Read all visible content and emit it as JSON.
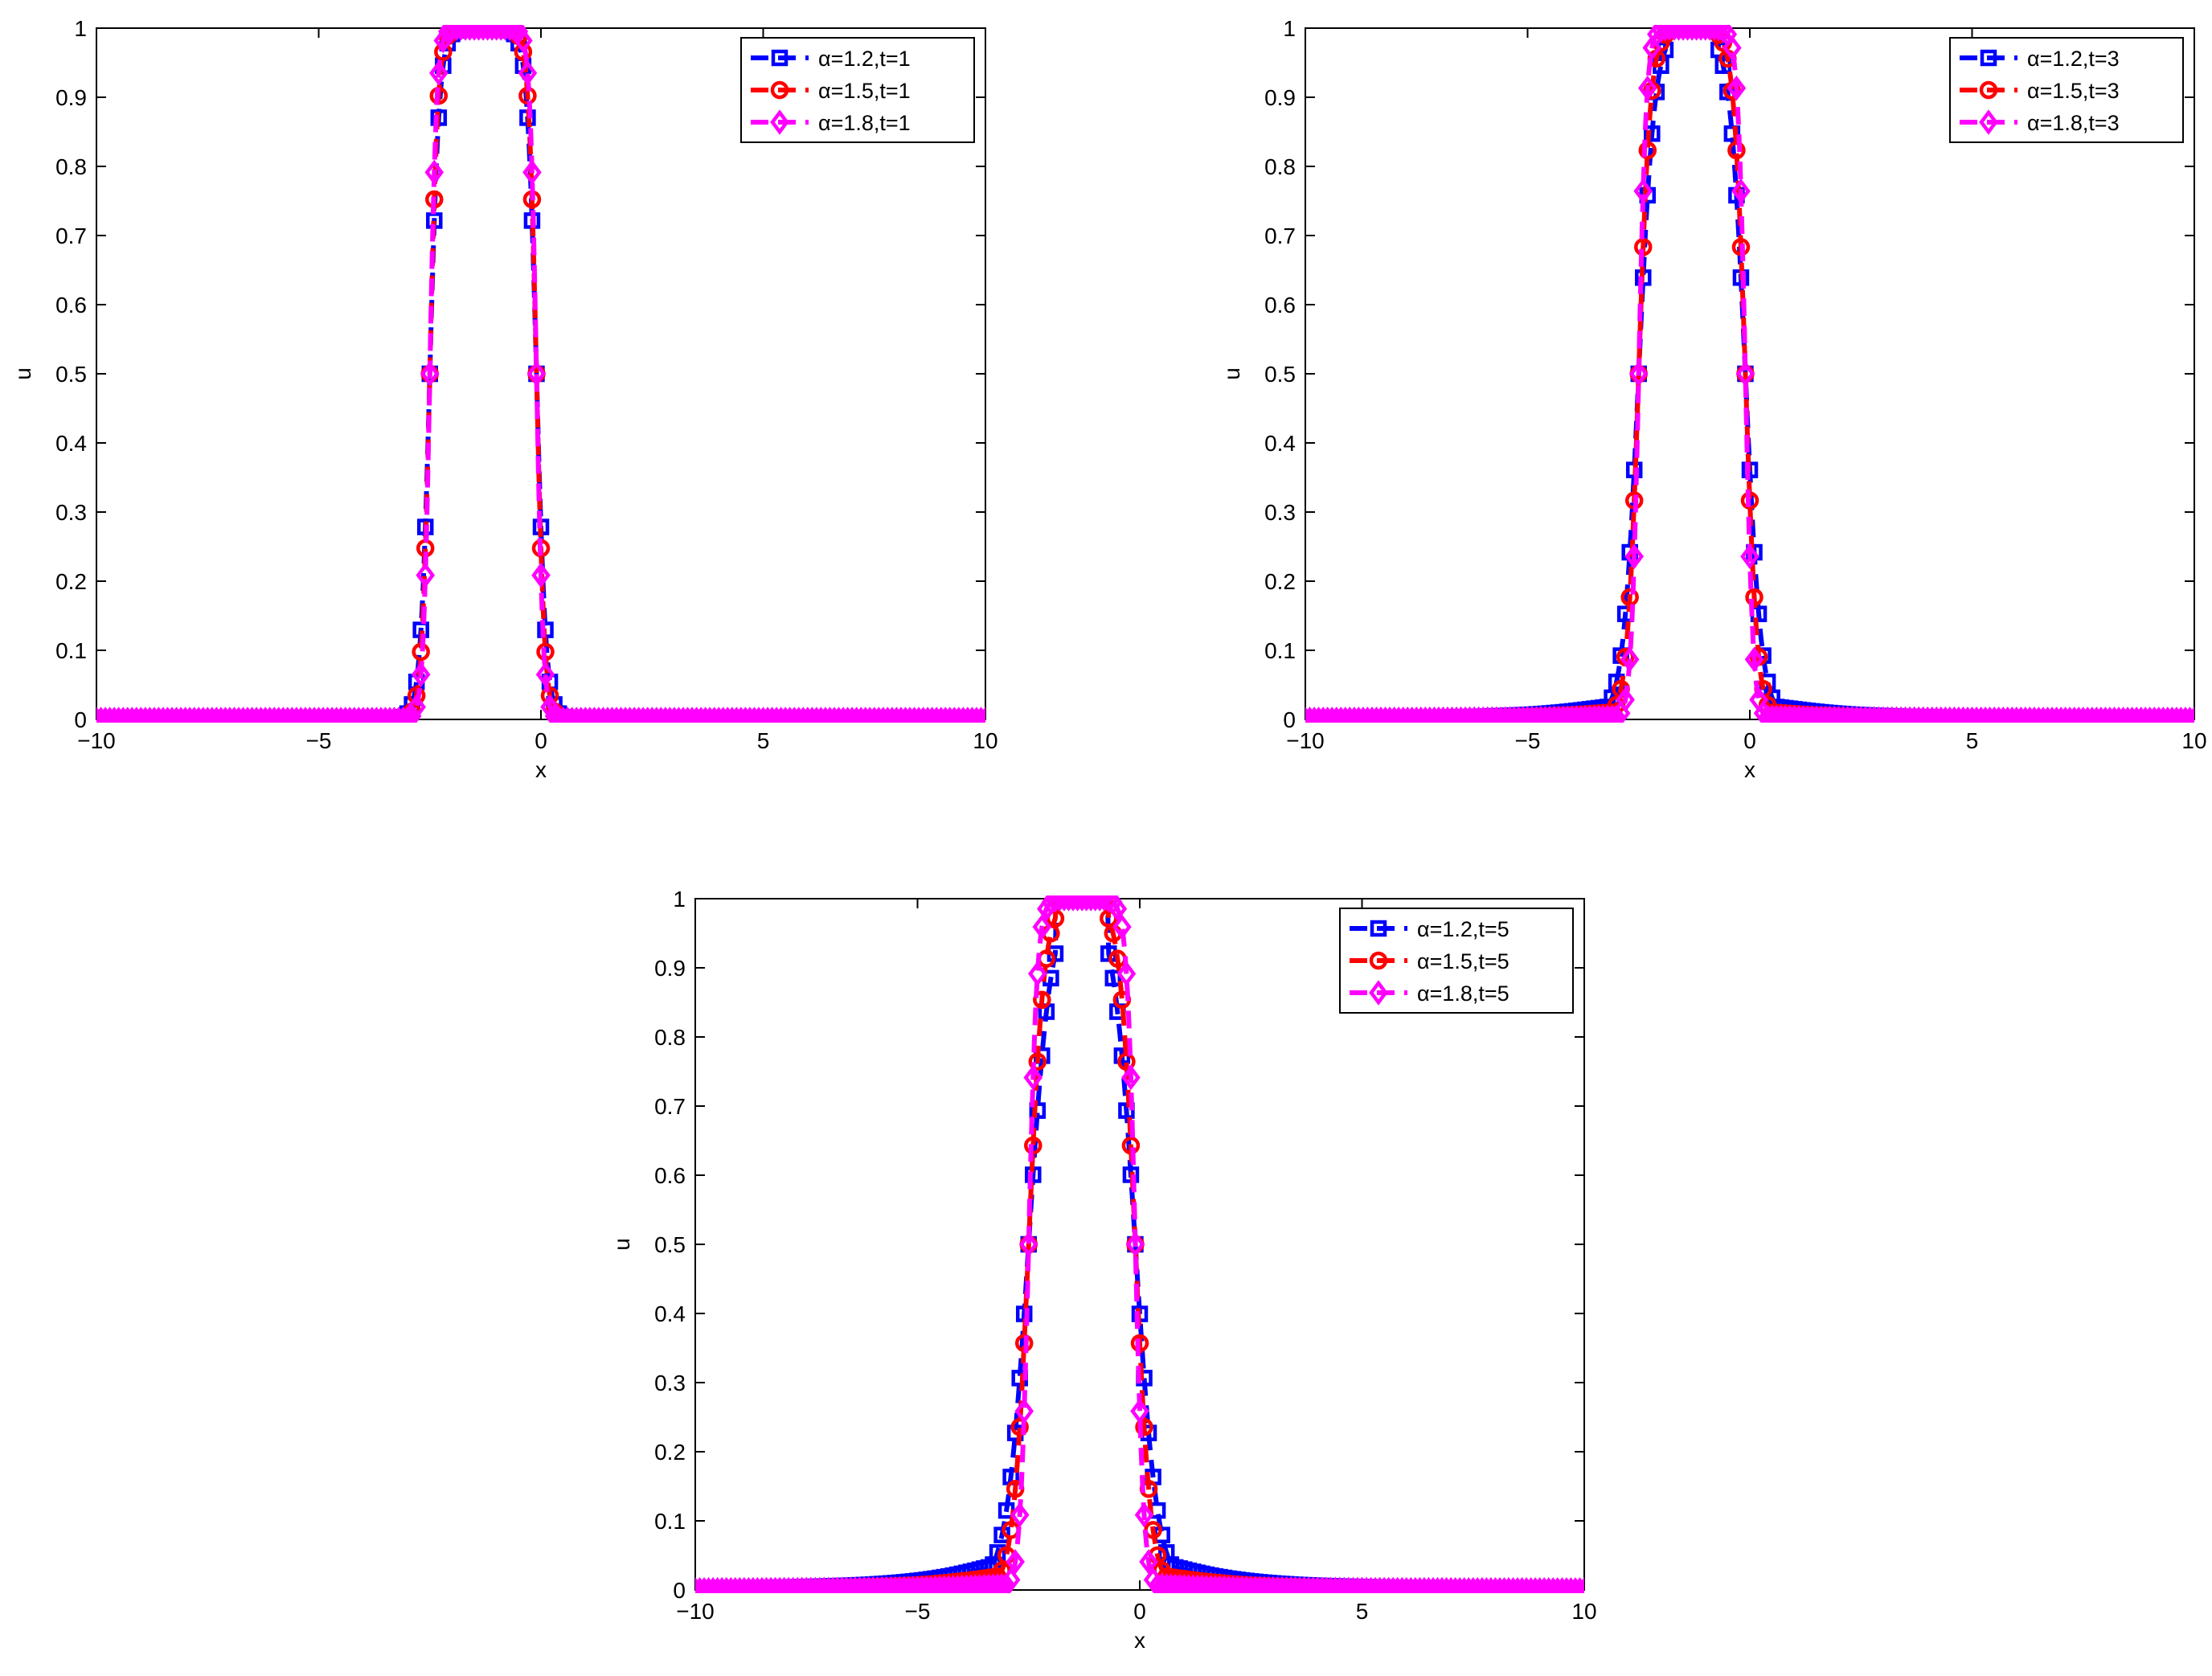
{
  "chart_data": [
    {
      "type": "line",
      "xlabel": "x",
      "ylabel": "u",
      "xlim": [
        -10,
        10
      ],
      "ylim": [
        0,
        1
      ],
      "xticks": [
        "−10",
        "−5",
        "0",
        "5",
        "10"
      ],
      "yticks": [
        "0",
        "0.1",
        "0.2",
        "0.3",
        "0.4",
        "0.5",
        "0.6",
        "0.7",
        "0.8",
        "0.9",
        "1"
      ],
      "legend_position": "top-right",
      "series": [
        {
          "name": "α=1.2,t=1",
          "color": "#0000ff",
          "marker": "square",
          "t": 1,
          "alpha": 1.2
        },
        {
          "name": "α=1.5,t=1",
          "color": "#ff0000",
          "marker": "circle",
          "t": 1,
          "alpha": 1.5
        },
        {
          "name": "α=1.8,t=1",
          "color": "#ff00ff",
          "marker": "diamond",
          "t": 1,
          "alpha": 1.8
        }
      ]
    },
    {
      "type": "line",
      "xlabel": "x",
      "ylabel": "u",
      "xlim": [
        -10,
        10
      ],
      "ylim": [
        0,
        1
      ],
      "xticks": [
        "−10",
        "−5",
        "0",
        "5",
        "10"
      ],
      "yticks": [
        "0",
        "0.1",
        "0.2",
        "0.3",
        "0.4",
        "0.5",
        "0.6",
        "0.7",
        "0.8",
        "0.9",
        "1"
      ],
      "legend_position": "top-right",
      "series": [
        {
          "name": "α=1.2,t=3",
          "color": "#0000ff",
          "marker": "square",
          "t": 3,
          "alpha": 1.2
        },
        {
          "name": "α=1.5,t=3",
          "color": "#ff0000",
          "marker": "circle",
          "t": 3,
          "alpha": 1.5
        },
        {
          "name": "α=1.8,t=3",
          "color": "#ff00ff",
          "marker": "diamond",
          "t": 3,
          "alpha": 1.8
        }
      ]
    },
    {
      "type": "line",
      "xlabel": "x",
      "ylabel": "u",
      "xlim": [
        -10,
        10
      ],
      "ylim": [
        0,
        1
      ],
      "xticks": [
        "−10",
        "−5",
        "0",
        "5",
        "10"
      ],
      "yticks": [
        "0",
        "0.1",
        "0.2",
        "0.3",
        "0.4",
        "0.5",
        "0.6",
        "0.7",
        "0.8",
        "0.9",
        "1"
      ],
      "legend_position": "top-right",
      "series": [
        {
          "name": "α=1.2,t=5",
          "color": "#0000ff",
          "marker": "square",
          "t": 5,
          "alpha": 1.2
        },
        {
          "name": "α=1.5,t=5",
          "color": "#ff0000",
          "marker": "circle",
          "t": 5,
          "alpha": 1.5
        },
        {
          "name": "α=1.8,t=5",
          "color": "#ff00ff",
          "marker": "diamond",
          "t": 5,
          "alpha": 1.8
        }
      ]
    }
  ]
}
